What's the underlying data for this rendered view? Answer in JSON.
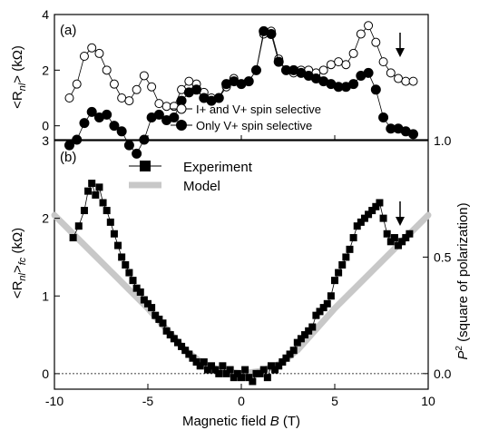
{
  "chart_data": [
    {
      "panel": "(a)",
      "type": "scatter",
      "ylabel_main": "<R",
      "ylabel_sub": "nl",
      "ylabel_end": "> (kΩ)",
      "xlim": [
        -10,
        10
      ],
      "ylim": [
        -0.5,
        4
      ],
      "yticks": [
        0,
        2,
        4
      ],
      "legend_placement": "lower-right",
      "annotations": [
        "arrow at B = 8.6 T"
      ],
      "series": [
        {
          "name": "I+ and V+ spin selective",
          "marker": "open-circle",
          "x": [
            -9.2,
            -8.8,
            -8.4,
            -8.0,
            -7.6,
            -7.2,
            -6.8,
            -6.4,
            -6.0,
            -5.6,
            -5.2,
            -4.8,
            -4.4,
            -4.0,
            -3.6,
            -3.2,
            -2.8,
            -2.4,
            -2.0,
            -1.6,
            -1.2,
            -0.8,
            -0.4,
            0.0,
            0.4,
            0.8,
            1.2,
            1.6,
            2.0,
            2.4,
            2.8,
            3.2,
            3.6,
            4.0,
            4.4,
            4.8,
            5.2,
            5.6,
            6.0,
            6.4,
            6.8,
            7.2,
            7.6,
            8.0,
            8.4,
            8.8,
            9.2
          ],
          "y": [
            1.0,
            1.5,
            2.5,
            2.8,
            2.6,
            2.0,
            1.5,
            1.0,
            0.9,
            1.3,
            1.8,
            1.4,
            0.8,
            0.7,
            0.7,
            1.3,
            1.6,
            1.5,
            1.2,
            1.0,
            1.0,
            1.4,
            1.7,
            1.5,
            1.6,
            2.0,
            3.3,
            3.4,
            2.4,
            2.0,
            1.9,
            2.0,
            2.0,
            1.9,
            2.0,
            2.2,
            2.3,
            2.2,
            2.6,
            3.3,
            3.6,
            3.0,
            2.3,
            1.9,
            1.7,
            1.6,
            1.6
          ]
        },
        {
          "name": "Only V+ spin selective",
          "marker": "filled-circle",
          "x": [
            -9.2,
            -8.8,
            -8.4,
            -8.0,
            -7.6,
            -7.2,
            -6.8,
            -6.4,
            -6.0,
            -5.6,
            -5.2,
            -4.8,
            -4.4,
            -4.0,
            -3.6,
            -3.2,
            -2.8,
            -2.4,
            -2.0,
            -1.6,
            -1.2,
            -0.8,
            -0.4,
            0.0,
            0.4,
            0.8,
            1.2,
            1.6,
            2.0,
            2.4,
            2.8,
            3.2,
            3.6,
            4.0,
            4.4,
            4.8,
            5.2,
            5.6,
            6.0,
            6.4,
            6.8,
            7.2,
            7.6,
            8.0,
            8.4,
            8.8,
            9.2
          ],
          "y": [
            -0.7,
            -0.5,
            0.1,
            0.5,
            0.3,
            0.4,
            0.0,
            -0.2,
            -0.7,
            -1.0,
            -0.5,
            0.3,
            0.4,
            0.2,
            0.3,
            0.9,
            1.2,
            1.3,
            1.0,
            0.9,
            1.0,
            1.5,
            1.6,
            1.5,
            1.6,
            2.0,
            3.4,
            3.3,
            2.3,
            2.0,
            2.0,
            1.9,
            1.8,
            1.7,
            1.6,
            1.5,
            1.4,
            1.4,
            1.5,
            1.8,
            1.9,
            1.3,
            0.3,
            -0.1,
            -0.1,
            -0.2,
            -0.3
          ]
        }
      ]
    },
    {
      "panel": "(b)",
      "type": "scatter",
      "ylabel_main": "<R",
      "ylabel_sub": "nl",
      "ylabel_mid": ">",
      "ylabel_sub2": "fc",
      "ylabel_end": " (kΩ)",
      "y2label_p": "P",
      "y2label_sup": "2",
      "y2label_rest": " (square of polarization)",
      "xlabel_text": "Magnetic field ",
      "xlabel_var": "B",
      "xlabel_unit": "  (T)",
      "xlim": [
        -10,
        10
      ],
      "ylim": [
        -0.2,
        3
      ],
      "y2lim": [
        -0.067,
        1.0
      ],
      "xticks": [
        -10,
        -5,
        0,
        5,
        10
      ],
      "yticks": [
        0,
        1,
        2,
        3
      ],
      "y2ticks": [
        "0.0",
        "0.5",
        "1.0"
      ],
      "zero_line": "dotted",
      "legend_placement": "top-left",
      "annotations": [
        "arrow at B = 8.6 T"
      ],
      "series": [
        {
          "name": "Experiment",
          "marker": "filled-square",
          "axis": "left",
          "x": [
            -9.0,
            -8.7,
            -8.4,
            -8.2,
            -8.0,
            -7.8,
            -7.6,
            -7.4,
            -7.2,
            -7.0,
            -6.8,
            -6.6,
            -6.4,
            -6.2,
            -6.0,
            -5.8,
            -5.6,
            -5.4,
            -5.2,
            -5.0,
            -4.8,
            -4.6,
            -4.4,
            -4.2,
            -4.0,
            -3.8,
            -3.6,
            -3.4,
            -3.2,
            -3.0,
            -2.8,
            -2.6,
            -2.4,
            -2.2,
            -2.0,
            -1.8,
            -1.6,
            -1.4,
            -1.2,
            -1.0,
            -0.8,
            -0.6,
            -0.4,
            -0.2,
            0.0,
            0.2,
            0.4,
            0.6,
            0.8,
            1.0,
            1.2,
            1.4,
            1.6,
            1.8,
            2.0,
            2.2,
            2.4,
            2.6,
            2.8,
            3.0,
            3.2,
            3.4,
            3.6,
            3.8,
            4.0,
            4.2,
            4.4,
            4.6,
            4.8,
            5.0,
            5.2,
            5.4,
            5.6,
            5.8,
            6.0,
            6.2,
            6.4,
            6.6,
            6.8,
            7.0,
            7.2,
            7.4,
            7.6,
            7.8,
            8.0,
            8.2,
            8.4,
            8.6,
            8.8,
            9.0
          ],
          "y": [
            1.75,
            1.9,
            2.1,
            2.35,
            2.45,
            2.3,
            2.4,
            2.2,
            2.1,
            1.95,
            1.8,
            1.65,
            1.5,
            1.4,
            1.3,
            1.2,
            1.1,
            1.05,
            0.95,
            0.9,
            0.85,
            0.75,
            0.7,
            0.65,
            0.55,
            0.5,
            0.45,
            0.4,
            0.35,
            0.3,
            0.25,
            0.2,
            0.15,
            0.1,
            0.15,
            0.05,
            0.1,
            0.05,
            0.0,
            0.1,
            0.0,
            0.05,
            -0.05,
            0.0,
            -0.05,
            0.05,
            -0.05,
            -0.1,
            0.0,
            0.0,
            0.05,
            -0.05,
            0.1,
            0.05,
            0.1,
            0.15,
            0.2,
            0.25,
            0.3,
            0.4,
            0.45,
            0.5,
            0.55,
            0.6,
            0.75,
            0.8,
            0.85,
            0.9,
            1.0,
            1.2,
            1.3,
            1.4,
            1.5,
            1.6,
            1.75,
            1.9,
            1.95,
            2.0,
            2.05,
            2.1,
            2.15,
            2.2,
            2.0,
            1.8,
            1.7,
            1.75,
            1.65,
            1.7,
            1.75,
            1.8
          ]
        },
        {
          "name": "Model",
          "marker": "thick-gray-line",
          "axis": "right",
          "x": [
            -10,
            -9,
            -8,
            -7,
            -6,
            -5,
            -4,
            -3,
            -2,
            -1,
            0,
            1,
            2,
            3,
            4,
            5,
            6,
            7,
            8,
            9,
            10
          ],
          "y": [
            0.68,
            0.6,
            0.52,
            0.44,
            0.36,
            0.28,
            0.19,
            0.1,
            0.04,
            0.01,
            0.0,
            0.01,
            0.04,
            0.1,
            0.19,
            0.28,
            0.36,
            0.44,
            0.52,
            0.6,
            0.68
          ]
        }
      ]
    }
  ]
}
